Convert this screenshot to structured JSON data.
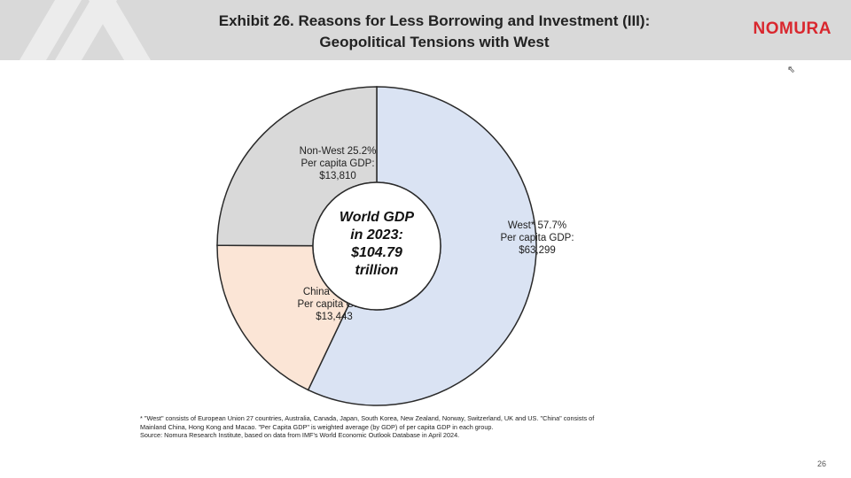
{
  "header": {
    "title_line1": "Exhibit 26. Reasons for Less Borrowing and Investment (III):",
    "title_line2": "Geopolitical Tensions with West",
    "brand": "NOMURA"
  },
  "chart_data": {
    "type": "pie",
    "donut": true,
    "center_label": [
      "World GDP",
      "in 2023:",
      "$104.79",
      "trillion"
    ],
    "slices": [
      {
        "name": "West*",
        "percent": 57.7,
        "per_capita_gdp": "$63,299",
        "color": "#dae3f3",
        "label": [
          "West* 57.7%",
          "Per capita GDP:",
          "$63,299"
        ]
      },
      {
        "name": "China*",
        "percent": 18.2,
        "per_capita_gdp": "$13,443",
        "color": "#fbe5d6",
        "label": [
          "China* 18.2%",
          "Per capita GDP:",
          "$13,443"
        ]
      },
      {
        "name": "Non-West",
        "percent": 25.2,
        "per_capita_gdp": "$13,810",
        "color": "#d9d9d9",
        "label": [
          "Non-West 25.2%",
          "Per capita GDP:",
          "$13,810"
        ]
      }
    ]
  },
  "notes": {
    "line1": "* \"West\" consists of European Union 27 countries, Australia, Canada, Japan, South Korea, New Zealand, Norway, Switzerland, UK and US. \"China\" consists of",
    "line2": "Mainland China, Hong Kong and Macao. \"Per Capita GDP\" is weighted average (by GDP) of per capita GDP in each group.",
    "line3": "Source: Nomura Research Institute, based on data from IMF's World Economic Outlook Database in April 2024."
  },
  "page_number": "26"
}
